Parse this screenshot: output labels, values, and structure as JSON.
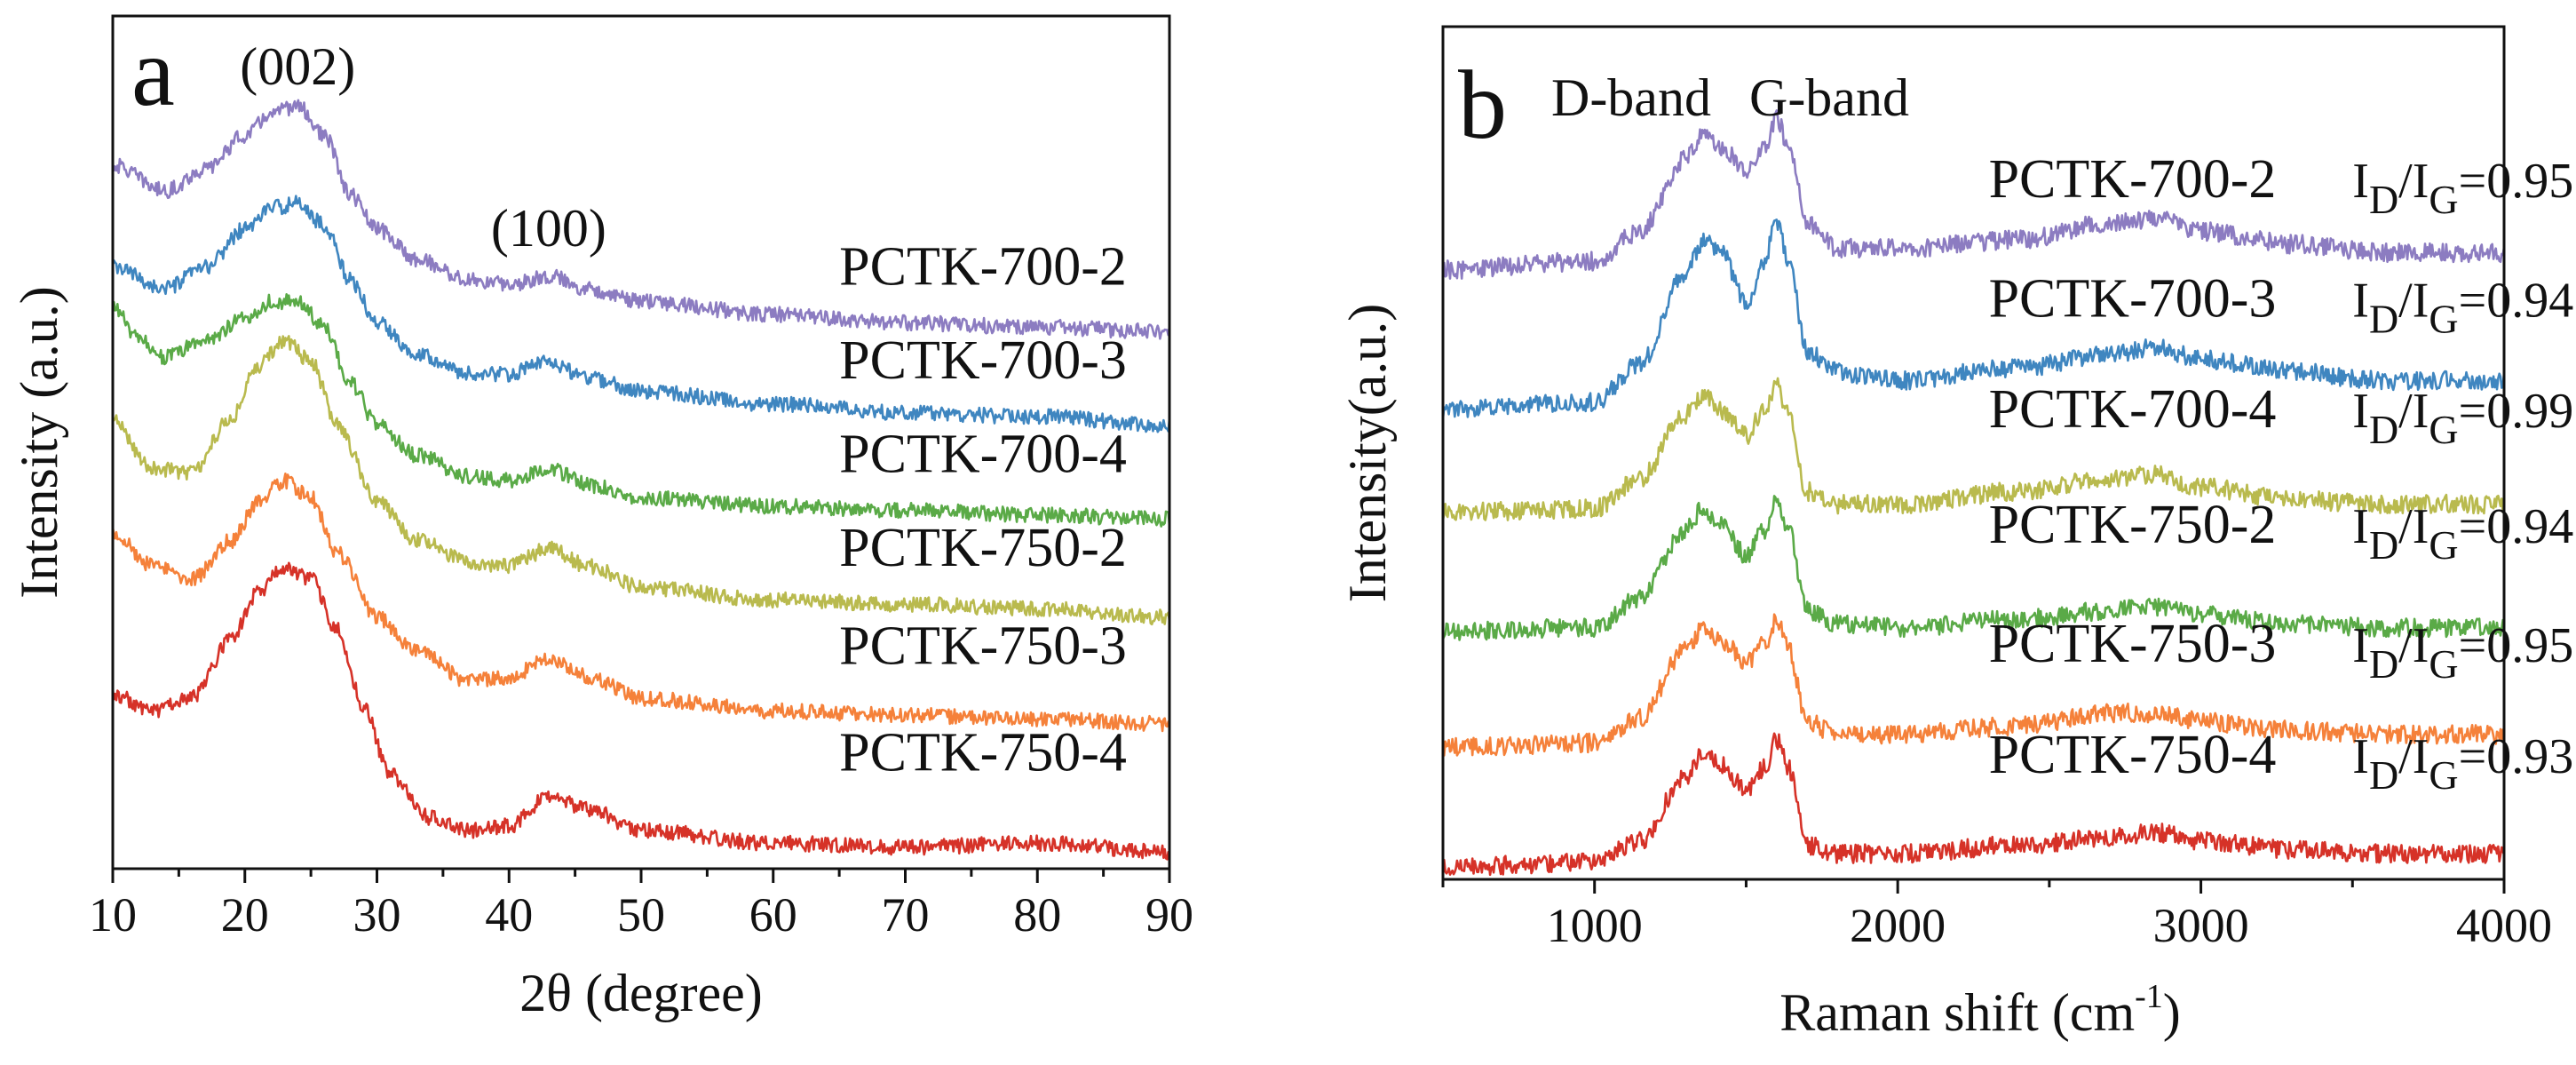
{
  "chart_data": [
    {
      "type": "line",
      "panel_label": "a",
      "xlabel": "2θ (degree)",
      "ylabel": "Intensity (a.u.)",
      "xlim": [
        10,
        90
      ],
      "ylim": [
        0,
        10
      ],
      "xticks": [
        10,
        20,
        30,
        40,
        50,
        60,
        70,
        80,
        90
      ],
      "yticks": [],
      "grid": false,
      "peak_annotations": [
        {
          "text": "(002)",
          "x": 24,
          "y": 9.2
        },
        {
          "text": "(100)",
          "x": 43,
          "y": 7.3
        }
      ],
      "series": [
        {
          "name": "PCTK-700-2",
          "color": "#8C7CC1",
          "label_x": 65,
          "label_y": 6.85,
          "points": [
            [
              10,
              8.25
            ],
            [
              14,
              7.95
            ],
            [
              17,
              8.2
            ],
            [
              20,
              8.6
            ],
            [
              22,
              8.85
            ],
            [
              24,
              8.95
            ],
            [
              26,
              8.6
            ],
            [
              28,
              7.9
            ],
            [
              30,
              7.5
            ],
            [
              33,
              7.15
            ],
            [
              37,
              6.9
            ],
            [
              40,
              6.85
            ],
            [
              43,
              6.95
            ],
            [
              46,
              6.8
            ],
            [
              50,
              6.65
            ],
            [
              60,
              6.5
            ],
            [
              70,
              6.4
            ],
            [
              80,
              6.35
            ],
            [
              90,
              6.3
            ]
          ]
        },
        {
          "name": "PCTK-700-3",
          "color": "#3F86C0",
          "label_x": 65,
          "label_y": 5.75,
          "points": [
            [
              10,
              7.05
            ],
            [
              14,
              6.8
            ],
            [
              17,
              7.05
            ],
            [
              20,
              7.5
            ],
            [
              22,
              7.75
            ],
            [
              24,
              7.8
            ],
            [
              26,
              7.55
            ],
            [
              28,
              6.9
            ],
            [
              30,
              6.4
            ],
            [
              33,
              6.05
            ],
            [
              37,
              5.8
            ],
            [
              40,
              5.8
            ],
            [
              43,
              5.95
            ],
            [
              46,
              5.75
            ],
            [
              50,
              5.6
            ],
            [
              60,
              5.45
            ],
            [
              70,
              5.35
            ],
            [
              80,
              5.3
            ],
            [
              90,
              5.2
            ]
          ]
        },
        {
          "name": "PCTK-700-4",
          "color": "#5AAA47",
          "label_x": 65,
          "label_y": 4.65,
          "points": [
            [
              10,
              6.6
            ],
            [
              12,
              6.2
            ],
            [
              14,
              6.0
            ],
            [
              17,
              6.2
            ],
            [
              20,
              6.45
            ],
            [
              22,
              6.65
            ],
            [
              24,
              6.65
            ],
            [
              26,
              6.35
            ],
            [
              28,
              5.7
            ],
            [
              30,
              5.2
            ],
            [
              33,
              4.85
            ],
            [
              37,
              4.6
            ],
            [
              40,
              4.55
            ],
            [
              43,
              4.7
            ],
            [
              46,
              4.5
            ],
            [
              50,
              4.35
            ],
            [
              60,
              4.25
            ],
            [
              70,
              4.2
            ],
            [
              80,
              4.15
            ],
            [
              90,
              4.1
            ]
          ]
        },
        {
          "name": "PCTK-750-2",
          "color": "#B9BA4E",
          "label_x": 65,
          "label_y": 3.55,
          "points": [
            [
              10,
              5.25
            ],
            [
              13,
              4.7
            ],
            [
              16,
              4.65
            ],
            [
              19,
              5.3
            ],
            [
              21,
              5.9
            ],
            [
              23,
              6.2
            ],
            [
              25,
              5.95
            ],
            [
              27,
              5.2
            ],
            [
              30,
              4.3
            ],
            [
              33,
              3.85
            ],
            [
              37,
              3.6
            ],
            [
              40,
              3.55
            ],
            [
              43,
              3.75
            ],
            [
              46,
              3.55
            ],
            [
              50,
              3.3
            ],
            [
              60,
              3.15
            ],
            [
              70,
              3.1
            ],
            [
              80,
              3.05
            ],
            [
              90,
              2.95
            ]
          ]
        },
        {
          "name": "PCTK-750-3",
          "color": "#F5813A",
          "label_x": 65,
          "label_y": 2.4,
          "points": [
            [
              10,
              3.95
            ],
            [
              13,
              3.55
            ],
            [
              16,
              3.4
            ],
            [
              19,
              3.85
            ],
            [
              21,
              4.3
            ],
            [
              23,
              4.55
            ],
            [
              25,
              4.35
            ],
            [
              27,
              3.7
            ],
            [
              30,
              2.95
            ],
            [
              33,
              2.55
            ],
            [
              37,
              2.2
            ],
            [
              40,
              2.25
            ],
            [
              43,
              2.45
            ],
            [
              46,
              2.25
            ],
            [
              50,
              2.0
            ],
            [
              60,
              1.85
            ],
            [
              70,
              1.8
            ],
            [
              80,
              1.75
            ],
            [
              90,
              1.7
            ]
          ]
        },
        {
          "name": "PCTK-750-4",
          "color": "#D63228",
          "label_x": 65,
          "label_y": 1.15,
          "points": [
            [
              10,
              2.05
            ],
            [
              13,
              1.85
            ],
            [
              16,
              2.0
            ],
            [
              19,
              2.7
            ],
            [
              21,
              3.25
            ],
            [
              23,
              3.55
            ],
            [
              25,
              3.4
            ],
            [
              27,
              2.8
            ],
            [
              29,
              1.9
            ],
            [
              31,
              1.1
            ],
            [
              34,
              0.6
            ],
            [
              37,
              0.45
            ],
            [
              40,
              0.5
            ],
            [
              43,
              0.85
            ],
            [
              46,
              0.7
            ],
            [
              50,
              0.45
            ],
            [
              60,
              0.3
            ],
            [
              70,
              0.25
            ],
            [
              80,
              0.3
            ],
            [
              90,
              0.2
            ]
          ]
        }
      ]
    },
    {
      "type": "line",
      "panel_label": "b",
      "xlabel": "Raman shift (cm",
      "xlabel_superscript": "-1",
      "xlabel_close": ")",
      "ylabel": "Intensity(a.u.)",
      "xlim": [
        500,
        4000
      ],
      "ylim": [
        0,
        10
      ],
      "xticks": [
        1000,
        2000,
        3000,
        4000
      ],
      "yticks": [],
      "grid": false,
      "band_labels": [
        "D-band",
        "G-band"
      ],
      "ratio_prefix": "I",
      "ratio_sub_d": "D",
      "ratio_slash": "/I",
      "ratio_sub_g": "G",
      "series": [
        {
          "name": "PCTK-700-2",
          "ratio": "=0.95",
          "color": "#8C7CC1",
          "label_x": 2300,
          "label_y": 8.0,
          "points": [
            [
              500,
              7.15
            ],
            [
              1000,
              7.25
            ],
            [
              1150,
              7.6
            ],
            [
              1300,
              8.45
            ],
            [
              1360,
              8.75
            ],
            [
              1420,
              8.6
            ],
            [
              1500,
              8.3
            ],
            [
              1560,
              8.55
            ],
            [
              1600,
              8.95
            ],
            [
              1640,
              8.6
            ],
            [
              1700,
              7.7
            ],
            [
              1800,
              7.4
            ],
            [
              2000,
              7.4
            ],
            [
              2400,
              7.5
            ],
            [
              2700,
              7.7
            ],
            [
              2850,
              7.75
            ],
            [
              3000,
              7.6
            ],
            [
              3300,
              7.45
            ],
            [
              3600,
              7.35
            ],
            [
              4000,
              7.35
            ]
          ]
        },
        {
          "name": "PCTK-700-3",
          "ratio": "=0.94",
          "color": "#3F86C0",
          "label_x": 2300,
          "label_y": 6.6,
          "points": [
            [
              500,
              5.5
            ],
            [
              1000,
              5.6
            ],
            [
              1150,
              6.05
            ],
            [
              1300,
              7.1
            ],
            [
              1360,
              7.5
            ],
            [
              1420,
              7.35
            ],
            [
              1500,
              6.75
            ],
            [
              1560,
              7.25
            ],
            [
              1600,
              7.7
            ],
            [
              1640,
              7.25
            ],
            [
              1700,
              6.2
            ],
            [
              1800,
              5.95
            ],
            [
              2000,
              5.85
            ],
            [
              2400,
              6.0
            ],
            [
              2700,
              6.15
            ],
            [
              2850,
              6.25
            ],
            [
              3000,
              6.1
            ],
            [
              3300,
              5.95
            ],
            [
              3600,
              5.85
            ],
            [
              4000,
              5.85
            ]
          ]
        },
        {
          "name": "PCTK-700-4",
          "ratio": "=0.99",
          "color": "#B9BA4E",
          "label_x": 2300,
          "label_y": 5.3,
          "points": [
            [
              500,
              4.3
            ],
            [
              1000,
              4.35
            ],
            [
              1150,
              4.7
            ],
            [
              1300,
              5.45
            ],
            [
              1360,
              5.7
            ],
            [
              1420,
              5.5
            ],
            [
              1500,
              5.2
            ],
            [
              1560,
              5.5
            ],
            [
              1600,
              5.8
            ],
            [
              1640,
              5.45
            ],
            [
              1700,
              4.55
            ],
            [
              1800,
              4.4
            ],
            [
              2000,
              4.4
            ],
            [
              2400,
              4.55
            ],
            [
              2700,
              4.7
            ],
            [
              2850,
              4.75
            ],
            [
              3000,
              4.6
            ],
            [
              3300,
              4.45
            ],
            [
              3600,
              4.4
            ],
            [
              4000,
              4.4
            ]
          ]
        },
        {
          "name": "PCTK-750-2",
          "ratio": "=0.94",
          "color": "#5AAA47",
          "label_x": 2300,
          "label_y": 3.95,
          "points": [
            [
              500,
              2.9
            ],
            [
              1000,
              2.95
            ],
            [
              1150,
              3.3
            ],
            [
              1300,
              4.1
            ],
            [
              1360,
              4.35
            ],
            [
              1420,
              4.15
            ],
            [
              1500,
              3.8
            ],
            [
              1560,
              4.1
            ],
            [
              1600,
              4.45
            ],
            [
              1640,
              4.1
            ],
            [
              1700,
              3.15
            ],
            [
              1800,
              3.0
            ],
            [
              2000,
              2.95
            ],
            [
              2400,
              3.05
            ],
            [
              2700,
              3.15
            ],
            [
              2850,
              3.2
            ],
            [
              3000,
              3.1
            ],
            [
              3300,
              3.0
            ],
            [
              3600,
              2.95
            ],
            [
              4000,
              2.95
            ]
          ]
        },
        {
          "name": "PCTK-750-3",
          "ratio": "=0.95",
          "color": "#F5813A",
          "label_x": 2300,
          "label_y": 2.55,
          "points": [
            [
              500,
              1.55
            ],
            [
              1000,
              1.6
            ],
            [
              1150,
              1.9
            ],
            [
              1300,
              2.7
            ],
            [
              1360,
              2.95
            ],
            [
              1420,
              2.8
            ],
            [
              1500,
              2.55
            ],
            [
              1560,
              2.75
            ],
            [
              1600,
              3.05
            ],
            [
              1640,
              2.7
            ],
            [
              1700,
              1.85
            ],
            [
              1800,
              1.7
            ],
            [
              2000,
              1.7
            ],
            [
              2400,
              1.8
            ],
            [
              2700,
              1.95
            ],
            [
              2850,
              1.95
            ],
            [
              3000,
              1.85
            ],
            [
              3300,
              1.75
            ],
            [
              3600,
              1.7
            ],
            [
              4000,
              1.7
            ]
          ]
        },
        {
          "name": "PCTK-750-4",
          "ratio": "=0.93",
          "color": "#D63228",
          "label_x": 2300,
          "label_y": 1.25,
          "points": [
            [
              500,
              0.15
            ],
            [
              1000,
              0.2
            ],
            [
              1150,
              0.45
            ],
            [
              1300,
              1.2
            ],
            [
              1360,
              1.5
            ],
            [
              1420,
              1.35
            ],
            [
              1500,
              1.05
            ],
            [
              1560,
              1.3
            ],
            [
              1600,
              1.65
            ],
            [
              1640,
              1.3
            ],
            [
              1700,
              0.4
            ],
            [
              1800,
              0.3
            ],
            [
              2000,
              0.3
            ],
            [
              2400,
              0.4
            ],
            [
              2700,
              0.5
            ],
            [
              2850,
              0.55
            ],
            [
              3000,
              0.45
            ],
            [
              3300,
              0.35
            ],
            [
              3600,
              0.3
            ],
            [
              4000,
              0.3
            ]
          ]
        }
      ]
    }
  ]
}
